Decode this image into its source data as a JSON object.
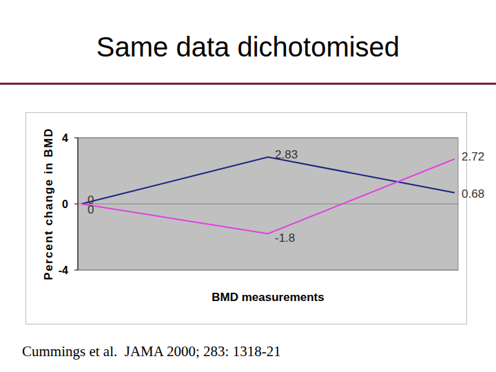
{
  "chart_data": {
    "type": "line",
    "title": "Same data dichotomised",
    "xlabel": "BMD measurements",
    "ylabel": "Percent change in BMD",
    "source": "Cummings et al.  JAMA 2000; 283: 1318-21",
    "categories": [
      null,
      null,
      null
    ],
    "series": [
      {
        "color": "#1c2480",
        "values": [
          0,
          2.83,
          0.68
        ]
      },
      {
        "color": "#e040e0",
        "values": [
          0,
          -1.8,
          2.72
        ]
      }
    ],
    "ylim": [
      -4,
      4
    ],
    "yticks": [
      -4,
      0,
      4
    ],
    "grid": true,
    "data_labels": true
  }
}
